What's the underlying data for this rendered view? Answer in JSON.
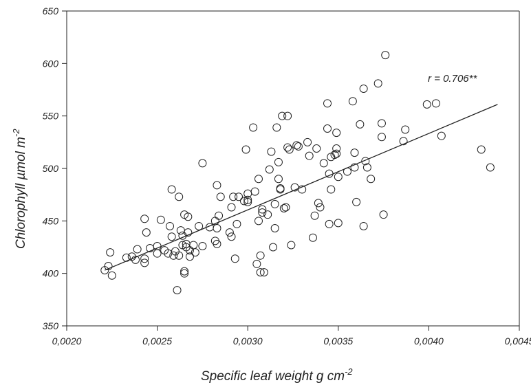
{
  "chart_data": {
    "type": "scatter",
    "title": "",
    "xlabel": "Specific leaf weight g cm",
    "xlabel_sup": "-2",
    "ylabel": "Chlorophyll  µmol m",
    "ylabel_sup": "-2",
    "xlim": [
      0.002,
      0.0045
    ],
    "ylim": [
      350,
      650
    ],
    "xticks": [
      0.002,
      0.0025,
      0.003,
      0.0035,
      0.004,
      0.0045
    ],
    "xtick_labels": [
      "0,0020",
      "0,0025",
      "0,0030",
      "0,0035",
      "0,0040",
      "0,0045"
    ],
    "yticks": [
      350,
      400,
      450,
      500,
      550,
      600,
      650
    ],
    "ytick_labels": [
      "350",
      "400",
      "450",
      "500",
      "550",
      "600",
      "650"
    ],
    "grid": false,
    "annotation": "r = 0.706**",
    "trendline": {
      "x": [
        0.00221,
        0.00438
      ],
      "y": [
        403,
        561
      ]
    },
    "points": [
      [
        0.00221,
        403
      ],
      [
        0.00223,
        407
      ],
      [
        0.00224,
        420
      ],
      [
        0.00225,
        398
      ],
      [
        0.00233,
        415
      ],
      [
        0.00236,
        416
      ],
      [
        0.00238,
        413
      ],
      [
        0.00239,
        423
      ],
      [
        0.00243,
        452
      ],
      [
        0.00243,
        410
      ],
      [
        0.00243,
        414
      ],
      [
        0.00244,
        439
      ],
      [
        0.00246,
        424
      ],
      [
        0.0025,
        426
      ],
      [
        0.0025,
        419
      ],
      [
        0.00252,
        451
      ],
      [
        0.00254,
        422
      ],
      [
        0.00256,
        419
      ],
      [
        0.00257,
        445
      ],
      [
        0.00258,
        435
      ],
      [
        0.00258,
        480
      ],
      [
        0.00259,
        417
      ],
      [
        0.0026,
        421
      ],
      [
        0.00261,
        384
      ],
      [
        0.00262,
        473
      ],
      [
        0.00262,
        417
      ],
      [
        0.00263,
        441
      ],
      [
        0.00264,
        427
      ],
      [
        0.00264,
        436
      ],
      [
        0.00265,
        456
      ],
      [
        0.00265,
        400
      ],
      [
        0.00265,
        402
      ],
      [
        0.00266,
        425
      ],
      [
        0.00266,
        428
      ],
      [
        0.00267,
        439
      ],
      [
        0.00267,
        454
      ],
      [
        0.00268,
        422
      ],
      [
        0.00268,
        416
      ],
      [
        0.0027,
        427
      ],
      [
        0.00271,
        420
      ],
      [
        0.00273,
        445
      ],
      [
        0.00275,
        505
      ],
      [
        0.00275,
        426
      ],
      [
        0.00279,
        444
      ],
      [
        0.00282,
        450
      ],
      [
        0.00282,
        431
      ],
      [
        0.00283,
        484
      ],
      [
        0.00283,
        428
      ],
      [
        0.00283,
        443
      ],
      [
        0.00284,
        455
      ],
      [
        0.00285,
        473
      ],
      [
        0.0029,
        439
      ],
      [
        0.00291,
        463
      ],
      [
        0.00291,
        435
      ],
      [
        0.00292,
        473
      ],
      [
        0.00293,
        414
      ],
      [
        0.00294,
        447
      ],
      [
        0.00295,
        473
      ],
      [
        0.00298,
        469
      ],
      [
        0.00299,
        518
      ],
      [
        0.003,
        476
      ],
      [
        0.003,
        470
      ],
      [
        0.003,
        468
      ],
      [
        0.00303,
        539
      ],
      [
        0.00304,
        478
      ],
      [
        0.00305,
        409
      ],
      [
        0.00306,
        450
      ],
      [
        0.00306,
        490
      ],
      [
        0.00307,
        401
      ],
      [
        0.00307,
        417
      ],
      [
        0.00308,
        461
      ],
      [
        0.00308,
        458
      ],
      [
        0.00309,
        401
      ],
      [
        0.00311,
        456
      ],
      [
        0.00312,
        499
      ],
      [
        0.00313,
        516
      ],
      [
        0.00314,
        425
      ],
      [
        0.00315,
        466
      ],
      [
        0.00315,
        443
      ],
      [
        0.00316,
        539
      ],
      [
        0.00317,
        506
      ],
      [
        0.00317,
        490
      ],
      [
        0.00318,
        481
      ],
      [
        0.00318,
        480
      ],
      [
        0.00319,
        550
      ],
      [
        0.0032,
        462
      ],
      [
        0.00321,
        463
      ],
      [
        0.00322,
        550
      ],
      [
        0.00322,
        520
      ],
      [
        0.00323,
        518
      ],
      [
        0.00324,
        427
      ],
      [
        0.00326,
        482
      ],
      [
        0.00327,
        522
      ],
      [
        0.00328,
        521
      ],
      [
        0.0033,
        480
      ],
      [
        0.00333,
        525
      ],
      [
        0.00334,
        512
      ],
      [
        0.00336,
        434
      ],
      [
        0.00337,
        455
      ],
      [
        0.00338,
        519
      ],
      [
        0.00339,
        467
      ],
      [
        0.0034,
        463
      ],
      [
        0.00342,
        505
      ],
      [
        0.00344,
        538
      ],
      [
        0.00344,
        562
      ],
      [
        0.00345,
        495
      ],
      [
        0.00345,
        447
      ],
      [
        0.00346,
        480
      ],
      [
        0.00346,
        511
      ],
      [
        0.00348,
        513
      ],
      [
        0.00349,
        534
      ],
      [
        0.00349,
        519
      ],
      [
        0.00349,
        514
      ],
      [
        0.0035,
        492
      ],
      [
        0.0035,
        448
      ],
      [
        0.00355,
        497
      ],
      [
        0.00358,
        564
      ],
      [
        0.00359,
        515
      ],
      [
        0.00359,
        501
      ],
      [
        0.0036,
        468
      ],
      [
        0.00362,
        542
      ],
      [
        0.00364,
        576
      ],
      [
        0.00364,
        445
      ],
      [
        0.00365,
        507
      ],
      [
        0.00366,
        501
      ],
      [
        0.00368,
        490
      ],
      [
        0.00372,
        581
      ],
      [
        0.00374,
        530
      ],
      [
        0.00374,
        543
      ],
      [
        0.00375,
        456
      ],
      [
        0.00376,
        608
      ],
      [
        0.00386,
        526
      ],
      [
        0.00387,
        537
      ],
      [
        0.00399,
        561
      ],
      [
        0.00404,
        562
      ],
      [
        0.00407,
        531
      ],
      [
        0.00429,
        518
      ],
      [
        0.00434,
        501
      ]
    ]
  }
}
